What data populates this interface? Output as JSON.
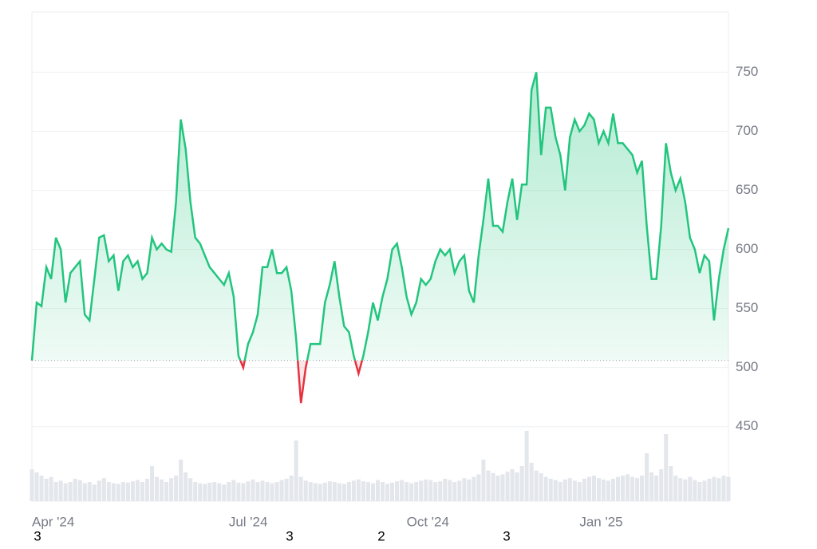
{
  "chart_data": {
    "type": "baseline",
    "values": [
      506,
      555,
      552,
      585,
      575,
      610,
      600,
      555,
      580,
      585,
      590,
      545,
      540,
      575,
      610,
      612,
      590,
      595,
      565,
      590,
      595,
      585,
      590,
      575,
      580,
      610,
      600,
      605,
      600,
      598,
      640,
      710,
      685,
      640,
      610,
      605,
      595,
      585,
      580,
      575,
      570,
      580,
      560,
      510,
      500,
      520,
      530,
      545,
      585,
      585,
      600,
      580,
      580,
      585,
      565,
      525,
      470,
      500,
      520,
      520,
      520,
      555,
      570,
      590,
      560,
      535,
      530,
      510,
      495,
      510,
      530,
      555,
      540,
      560,
      575,
      600,
      605,
      585,
      560,
      545,
      555,
      575,
      570,
      575,
      590,
      600,
      595,
      600,
      580,
      590,
      595,
      565,
      555,
      595,
      625,
      660,
      620,
      620,
      615,
      640,
      660,
      625,
      655,
      655,
      735,
      750,
      680,
      720,
      720,
      695,
      680,
      650,
      695,
      710,
      700,
      705,
      715,
      710,
      690,
      700,
      690,
      715,
      690,
      690,
      685,
      680,
      665,
      675,
      620,
      575,
      575,
      620,
      690,
      665,
      650,
      660,
      640,
      610,
      600,
      580,
      595,
      590,
      540,
      575,
      600,
      618
    ],
    "volume": [
      50,
      45,
      40,
      35,
      38,
      30,
      32,
      28,
      30,
      35,
      33,
      28,
      30,
      26,
      32,
      36,
      30,
      28,
      27,
      30,
      29,
      31,
      33,
      30,
      35,
      55,
      38,
      34,
      30,
      36,
      40,
      65,
      45,
      36,
      30,
      28,
      27,
      29,
      30,
      28,
      26,
      30,
      33,
      29,
      28,
      31,
      34,
      30,
      32,
      30,
      28,
      30,
      33,
      35,
      40,
      95,
      38,
      32,
      30,
      28,
      27,
      29,
      31,
      30,
      28,
      27,
      30,
      32,
      34,
      31,
      30,
      28,
      33,
      30,
      27,
      29,
      31,
      33,
      30,
      28,
      30,
      32,
      34,
      33,
      30,
      31,
      35,
      33,
      30,
      32,
      36,
      34,
      38,
      42,
      65,
      48,
      44,
      40,
      42,
      46,
      50,
      45,
      55,
      110,
      60,
      48,
      44,
      38,
      35,
      33,
      30,
      34,
      36,
      32,
      30,
      35,
      38,
      40,
      36,
      34,
      32,
      35,
      38,
      40,
      42,
      38,
      36,
      40,
      75,
      45,
      40,
      50,
      105,
      55,
      40,
      36,
      34,
      38,
      33,
      30,
      32,
      35,
      38,
      36,
      40,
      38
    ],
    "baseline": 506,
    "up_color": "#22c57e",
    "down_color": "#e5323f",
    "ylim": [
      387,
      801
    ],
    "yticks": [
      450,
      500,
      550,
      600,
      650,
      700,
      750
    ],
    "xticks": [
      {
        "value": 0,
        "label": "Apr '24"
      },
      {
        "value": 41,
        "label": "Jul '24"
      },
      {
        "value": 78,
        "label": "Oct '24"
      },
      {
        "value": 114,
        "label": "Jan '25"
      }
    ],
    "footer_marks": [
      "3",
      "3",
      "2",
      "3"
    ],
    "grid": true
  }
}
